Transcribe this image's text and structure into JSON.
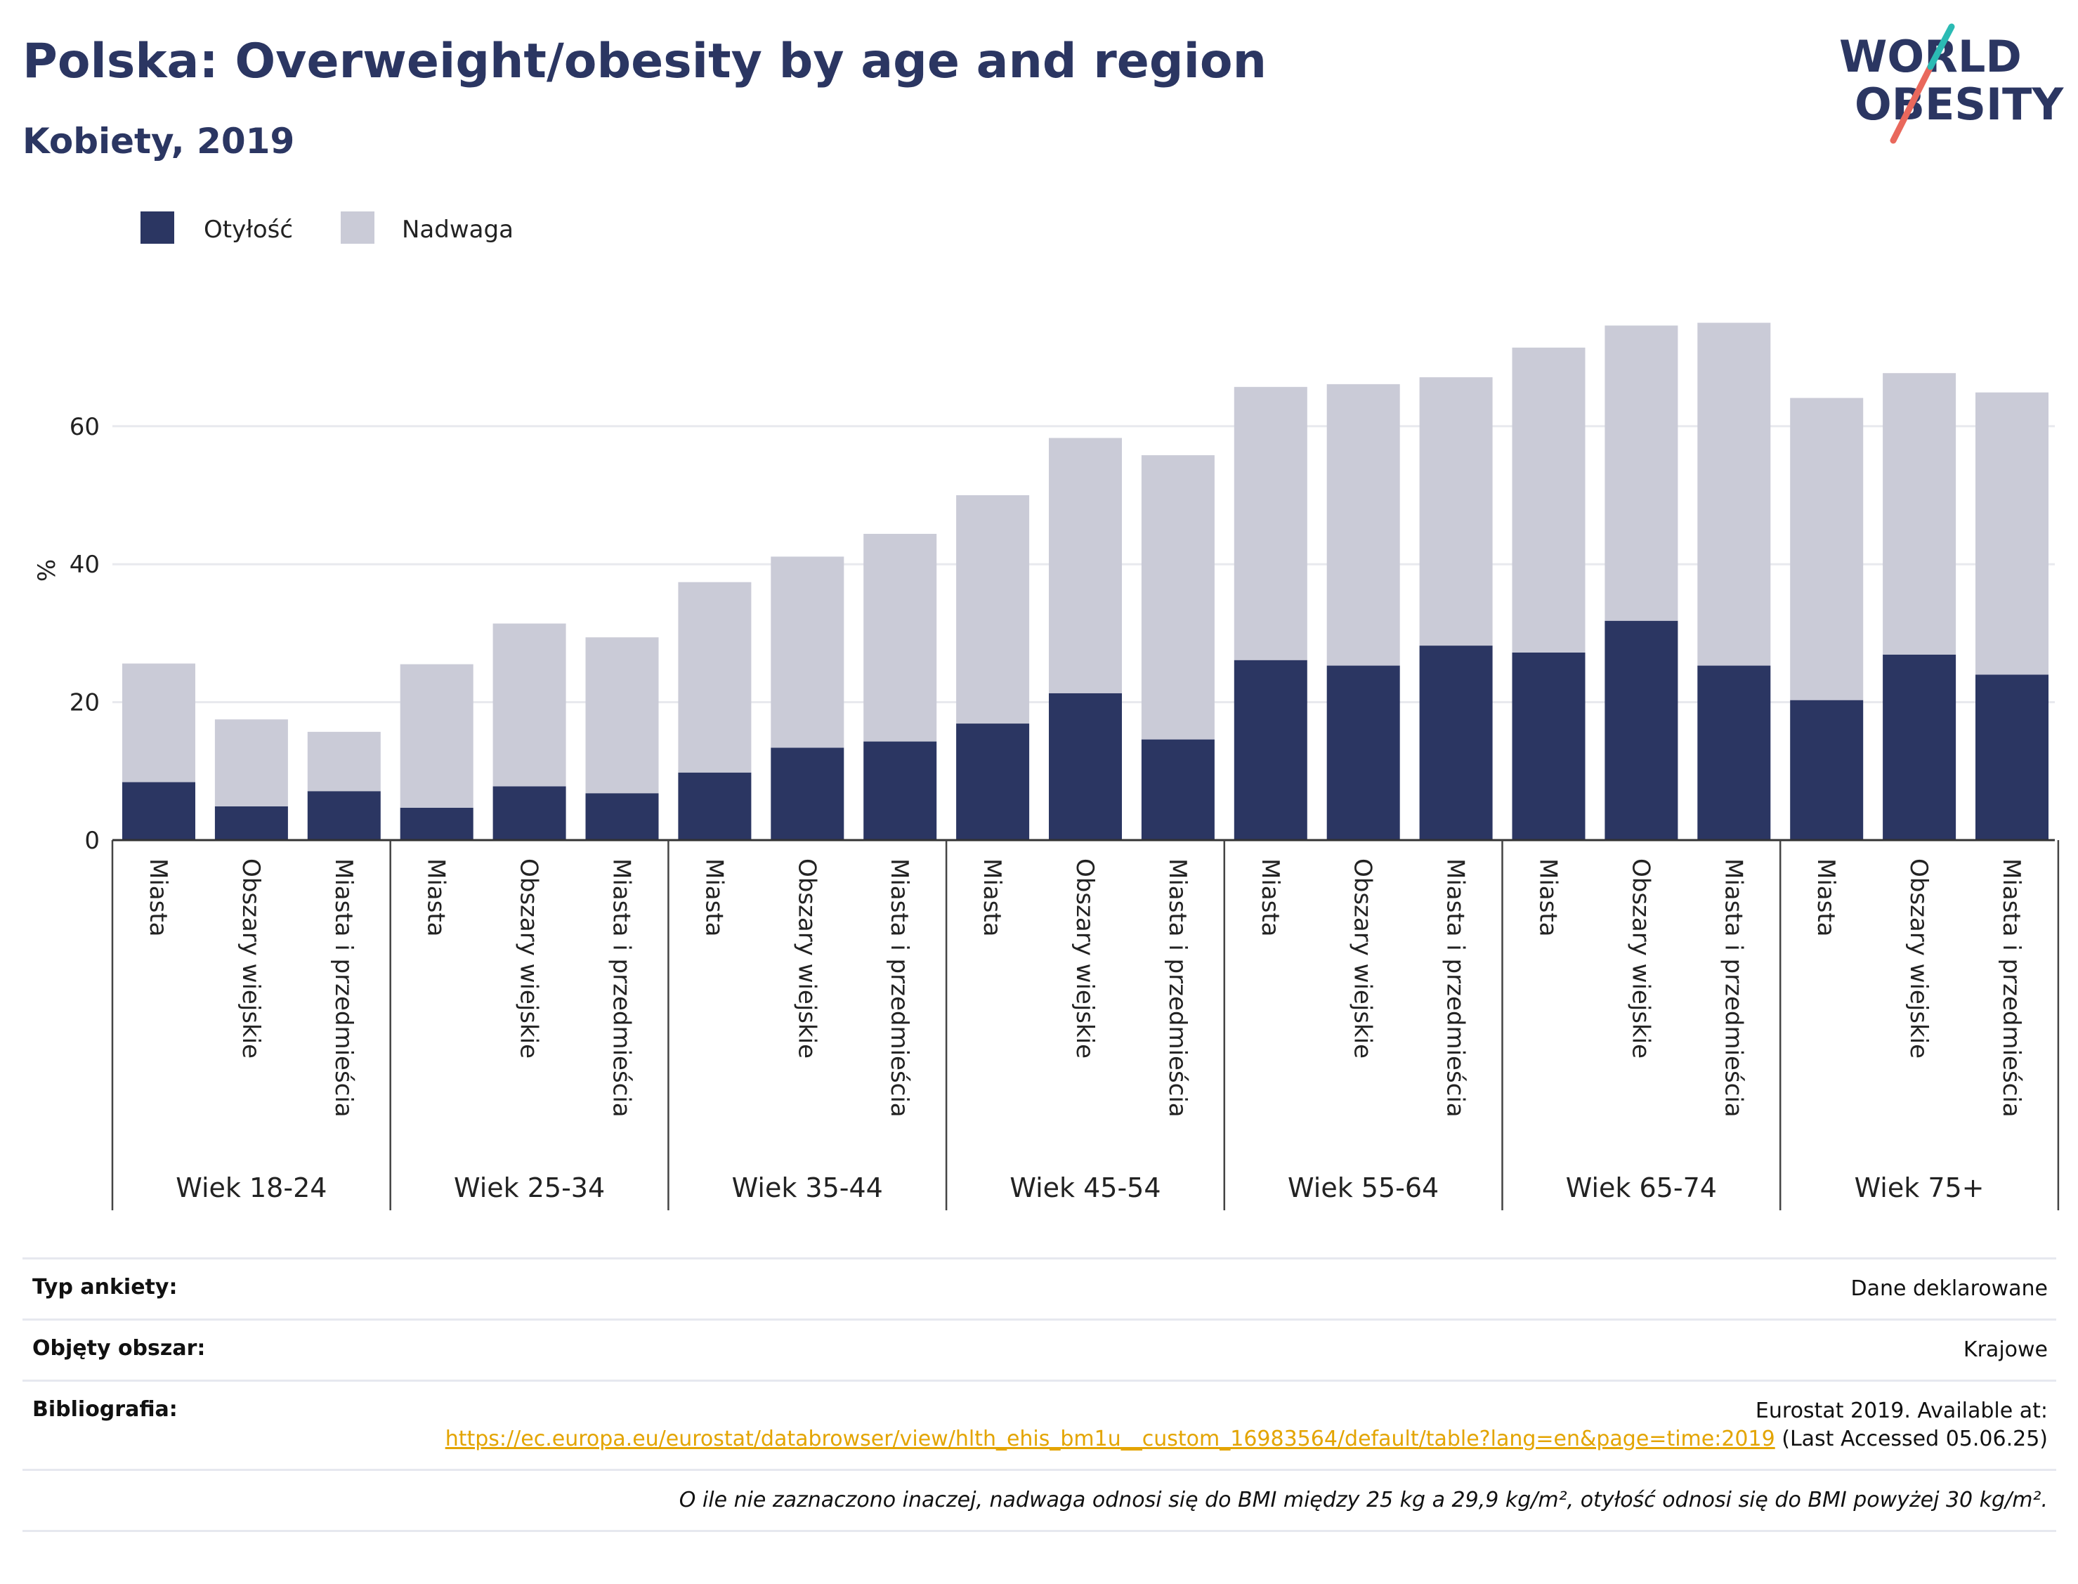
{
  "header": {
    "title": "Polska: Overweight/obesity by age and region",
    "subtitle": "Kobiety, 2019"
  },
  "logo": {
    "line1": "WORLD",
    "line2": "OBESITY"
  },
  "colors": {
    "obesity": "#2b3662",
    "overweight": "#cacbd7",
    "text": "#2b3662",
    "link": "#e3a400"
  },
  "chart_data": {
    "type": "bar",
    "stacked": true,
    "ylabel": "%",
    "ylim": [
      0,
      80
    ],
    "yticks": [
      0,
      20,
      40,
      60
    ],
    "grid": true,
    "legend_position": "top-left",
    "groups": [
      "Wiek 18-24",
      "Wiek 25-34",
      "Wiek 35-44",
      "Wiek 45-54",
      "Wiek 55-64",
      "Wiek 65-74",
      "Wiek 75+"
    ],
    "subcategories": [
      "Miasta",
      "Obszary wiejskie",
      "Miasta i przedmieścia"
    ],
    "series": [
      {
        "name": "Otyłość",
        "values": [
          8.4,
          4.9,
          7.1,
          4.7,
          7.8,
          6.8,
          9.8,
          13.4,
          14.3,
          16.9,
          21.3,
          14.6,
          26.1,
          25.3,
          28.2,
          27.2,
          31.8,
          25.3,
          20.3,
          26.9,
          24.0
        ]
      },
      {
        "name": "Nadwaga",
        "values": [
          17.2,
          12.6,
          8.6,
          20.8,
          23.6,
          22.6,
          27.6,
          27.7,
          30.1,
          33.1,
          37.0,
          41.2,
          39.6,
          40.8,
          38.9,
          44.2,
          42.8,
          49.7,
          43.8,
          40.8,
          40.9
        ]
      }
    ]
  },
  "meta": {
    "rows": [
      {
        "key": "Typ ankiety:",
        "value": "Dane deklarowane"
      },
      {
        "key": "Objęty obszar:",
        "value": "Krajowe"
      }
    ],
    "bibliography": {
      "key": "Bibliografia:",
      "prefix": "Eurostat 2019. Available at:",
      "link": "https://ec.europa.eu/eurostat/databrowser/view/hlth_ehis_bm1u__custom_16983564/default/table?lang=en&page=time:2019",
      "suffix": "(Last Accessed 05.06.25)"
    },
    "note": "O ile nie zaznaczono inaczej, nadwaga odnosi się do BMI między 25 kg a 29,9 kg/m², otyłość odnosi się do BMI powyżej 30 kg/m²."
  }
}
